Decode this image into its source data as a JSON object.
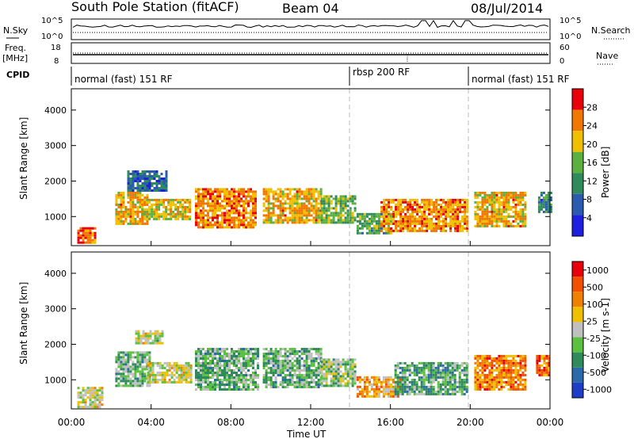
{
  "header": {
    "station": "South Pole Station (fitACF)",
    "beam": "Beam 04",
    "date": "08/Jul/2014"
  },
  "top_panels": {
    "nsky_label": "N.Sky",
    "nsearch_label": "N.Search",
    "freq_label_line1": "Freq.",
    "freq_label_line2": "[MHz]",
    "nave_label": "Nave",
    "cpid_label": "CPID",
    "nsky_ticks": [
      "10^5",
      "10^0"
    ],
    "nsearch_ticks": [
      "10^5",
      "10^0"
    ],
    "freq_ticks": [
      "18",
      "8"
    ],
    "nave_ticks": [
      "60",
      "0"
    ],
    "cpid_segments": [
      {
        "label": "normal (fast) 151 RF",
        "start_hour": 0,
        "end_hour": 14
      },
      {
        "label": "rbsp 200 RF",
        "start_hour": 14,
        "end_hour": 20
      },
      {
        "label": "normal (fast) 151 RF",
        "start_hour": 20,
        "end_hour": 24
      }
    ]
  },
  "axes": {
    "xlabel": "Time UT",
    "ylabel": "Slant Range [km]",
    "x_ticks": [
      "00:00",
      "04:00",
      "08:00",
      "12:00",
      "16:00",
      "20:00",
      "00:00"
    ],
    "y_ticks": [
      "1000",
      "2000",
      "3000",
      "4000"
    ]
  },
  "chart_data": [
    {
      "type": "heatmap",
      "title": "",
      "xlabel": "",
      "ylabel": "Slant Range [km]",
      "xlim_hours": [
        0,
        24
      ],
      "ylim": [
        180,
        4600
      ],
      "colorbar": {
        "label": "Power [dB]",
        "ticks": [
          "4",
          "8",
          "12",
          "16",
          "20",
          "24",
          "28"
        ],
        "range": [
          0,
          32
        ],
        "colors": [
          "#1f1fe0",
          "#2a5bb0",
          "#2f8a5c",
          "#5bb040",
          "#f0c000",
          "#f07800",
          "#e8000a"
        ]
      },
      "regions": [
        {
          "t0": 0.3,
          "t1": 1.2,
          "r0": 250,
          "r1": 700,
          "level": 26
        },
        {
          "t0": 2.2,
          "t1": 3.8,
          "r0": 800,
          "r1": 1700,
          "level": 22
        },
        {
          "t0": 2.8,
          "t1": 4.8,
          "r0": 1700,
          "r1": 2300,
          "level": 8
        },
        {
          "t0": 3.5,
          "t1": 6.0,
          "r0": 900,
          "r1": 1500,
          "level": 20
        },
        {
          "t0": 6.2,
          "t1": 9.2,
          "r0": 700,
          "r1": 1800,
          "level": 24
        },
        {
          "t0": 9.6,
          "t1": 12.5,
          "r0": 800,
          "r1": 1800,
          "level": 22
        },
        {
          "t0": 12.5,
          "t1": 14.2,
          "r0": 800,
          "r1": 1600,
          "level": 16
        },
        {
          "t0": 14.3,
          "t1": 16.0,
          "r0": 500,
          "r1": 1100,
          "level": 14
        },
        {
          "t0": 15.5,
          "t1": 19.8,
          "r0": 600,
          "r1": 1500,
          "level": 24
        },
        {
          "t0": 20.2,
          "t1": 22.8,
          "r0": 700,
          "r1": 1700,
          "level": 22
        },
        {
          "t0": 23.4,
          "t1": 24.0,
          "r0": 1100,
          "r1": 1700,
          "level": 10
        }
      ]
    },
    {
      "type": "heatmap",
      "title": "",
      "xlabel": "Time UT",
      "ylabel": "Slant Range [km]",
      "xlim_hours": [
        0,
        24
      ],
      "ylim": [
        180,
        4600
      ],
      "colorbar": {
        "label": "Velocity [m s-1]",
        "ticks": [
          "1000",
          "500",
          "100",
          "25",
          "-25",
          "-100",
          "-500",
          "-1000"
        ],
        "range": [
          -1200,
          1200
        ],
        "colors": [
          "#1f3ec8",
          "#2a6aa8",
          "#2f8a5c",
          "#5cc040",
          "#c0c0c0",
          "#f0c000",
          "#f08000",
          "#f05000",
          "#e8000a"
        ]
      },
      "regions": [
        {
          "t0": 0.3,
          "t1": 1.5,
          "r0": 250,
          "r1": 800,
          "level": 60
        },
        {
          "t0": 2.2,
          "t1": 3.9,
          "r0": 800,
          "r1": 1800,
          "level": -300
        },
        {
          "t0": 3.2,
          "t1": 4.6,
          "r0": 2000,
          "r1": 2400,
          "level": 0
        },
        {
          "t0": 3.8,
          "t1": 6.0,
          "r0": 900,
          "r1": 1500,
          "level": 60
        },
        {
          "t0": 6.2,
          "t1": 9.4,
          "r0": 700,
          "r1": 1900,
          "level": -300
        },
        {
          "t0": 9.6,
          "t1": 12.5,
          "r0": 800,
          "r1": 1900,
          "level": -300
        },
        {
          "t0": 12.5,
          "t1": 14.2,
          "r0": 800,
          "r1": 1600,
          "level": -150
        },
        {
          "t0": 14.3,
          "t1": 16.5,
          "r0": 500,
          "r1": 1100,
          "level": 400
        },
        {
          "t0": 16.2,
          "t1": 19.8,
          "r0": 600,
          "r1": 1500,
          "level": -400
        },
        {
          "t0": 20.2,
          "t1": 22.8,
          "r0": 700,
          "r1": 1700,
          "level": 600
        },
        {
          "t0": 23.3,
          "t1": 24.0,
          "r0": 1100,
          "r1": 1700,
          "level": 700
        }
      ]
    }
  ]
}
